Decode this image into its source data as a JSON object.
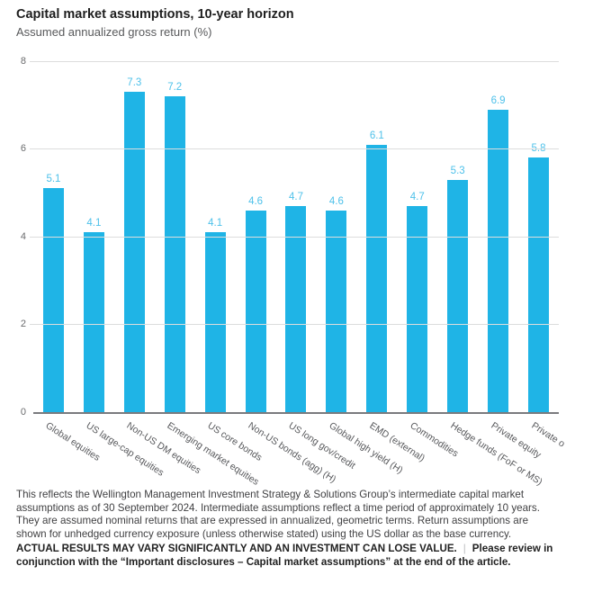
{
  "header": {
    "title": "Capital market assumptions, 10-year horizon",
    "subtitle": "Assumed annualized gross return (%)"
  },
  "chart_data": {
    "type": "bar",
    "title": "Capital market assumptions, 10-year horizon",
    "subtitle": "Assumed annualized gross return (%)",
    "categories": [
      "Global equities",
      "US large-cap equities",
      "Non-US DM equities",
      "Emerging market equities",
      "US core bonds",
      "Non-US bonds (agg) (H)",
      "US long gov/credit",
      "Global high yield (H)",
      "EMD (external)",
      "Commodities",
      "Hedge funds (FoF or MS)",
      "Private equity",
      "Private o"
    ],
    "values": [
      5.1,
      4.1,
      7.3,
      7.2,
      4.1,
      4.6,
      4.7,
      4.6,
      6.1,
      4.7,
      5.3,
      6.9,
      5.8
    ],
    "xlabel": "",
    "ylabel": "Assumed annualized gross return (%)",
    "ylim": [
      0,
      8
    ],
    "yticks": [
      0,
      2,
      4,
      6,
      8
    ],
    "grid": true,
    "legend": "none",
    "data_labels": true,
    "bar_color": "#1fb4e6",
    "value_label_color": "#4ec1ea"
  },
  "footnote": {
    "body": "This reflects the Wellington Management Investment Strategy & Solutions Group’s intermediate capital market\nassumptions as of 30 September 2024. Intermediate assumptions reflect a time period of approximately 10 years.\nThey are assumed nominal returns that are expressed in annualized, geometric terms. Return assumptions are\nshown for unhedged currency exposure (unless otherwise stated) using the US dollar as the base currency.",
    "disclaimer_1": "ACTUAL RESULTS MAY VARY SIGNIFICANTLY AND AN INVESTMENT CAN LOSE VALUE.",
    "separator": "|",
    "disclaimer_2": "Please review in conjunction with the “Important disclosures – Capital market assumptions” at the end of the article."
  }
}
